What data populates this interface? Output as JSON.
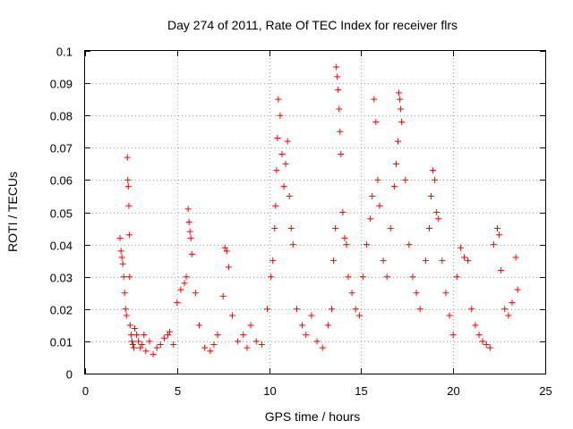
{
  "chart_data": {
    "type": "scatter",
    "title": "Day 274 of 2011, Rate Of TEC Index for receiver flrs",
    "xlabel": "GPS time / hours",
    "ylabel": "ROTI / TECUs",
    "xlim": [
      0,
      25
    ],
    "ylim": [
      0,
      0.1
    ],
    "xticks": [
      "0",
      "5",
      "10",
      "15",
      "20",
      "25"
    ],
    "yticks": [
      "0",
      "0.01",
      "0.02",
      "0.03",
      "0.04",
      "0.05",
      "0.06",
      "0.07",
      "0.08",
      "0.09",
      "0.1"
    ],
    "grid": true,
    "marker": "+",
    "color": "#ff0000",
    "series": [
      {
        "x": [
          1.9,
          1.95,
          2.0,
          2.05,
          2.1,
          2.15,
          2.2,
          2.25,
          2.3,
          2.32,
          2.35,
          2.38,
          2.4,
          2.42,
          2.45,
          2.5,
          2.55,
          2.6,
          2.65,
          2.7,
          2.8,
          2.9,
          3.0,
          3.1,
          3.2,
          3.3,
          3.5,
          3.7,
          3.9,
          4.1,
          4.3,
          4.5,
          4.6,
          4.8,
          5.0,
          5.2,
          5.4,
          5.5,
          5.6,
          5.65,
          5.7,
          5.75,
          5.8,
          6.0,
          6.2,
          6.5,
          6.8,
          7.0,
          7.2,
          7.5,
          7.6,
          7.7,
          7.8,
          8.0,
          8.3,
          8.6,
          8.8,
          9.0,
          9.3,
          9.6,
          9.9,
          10.1,
          10.2,
          10.3,
          10.35,
          10.4,
          10.45,
          10.5,
          10.6,
          10.7,
          10.8,
          10.9,
          11.0,
          11.1,
          11.2,
          11.3,
          11.5,
          11.8,
          12.0,
          12.3,
          12.6,
          12.9,
          13.2,
          13.4,
          13.5,
          13.6,
          13.65,
          13.7,
          13.75,
          13.8,
          13.85,
          13.9,
          14.0,
          14.1,
          14.2,
          14.3,
          14.5,
          14.7,
          14.9,
          15.1,
          15.3,
          15.5,
          15.6,
          15.7,
          15.8,
          15.9,
          16.0,
          16.2,
          16.4,
          16.6,
          16.8,
          16.9,
          17.0,
          17.05,
          17.1,
          17.15,
          17.2,
          17.4,
          17.6,
          17.8,
          18.0,
          18.2,
          18.5,
          18.7,
          18.8,
          18.9,
          19.0,
          19.1,
          19.2,
          19.4,
          19.6,
          19.8,
          20.0,
          20.2,
          20.4,
          20.6,
          20.8,
          21.0,
          21.2,
          21.4,
          21.6,
          21.8,
          22.0,
          22.2,
          22.4,
          22.5,
          22.6,
          22.8,
          23.0,
          23.2,
          23.4,
          23.5
        ],
        "y": [
          0.042,
          0.038,
          0.036,
          0.034,
          0.03,
          0.025,
          0.02,
          0.018,
          0.067,
          0.06,
          0.058,
          0.052,
          0.043,
          0.03,
          0.015,
          0.012,
          0.01,
          0.009,
          0.008,
          0.014,
          0.012,
          0.01,
          0.008,
          0.009,
          0.012,
          0.007,
          0.01,
          0.006,
          0.008,
          0.009,
          0.011,
          0.012,
          0.013,
          0.009,
          0.022,
          0.026,
          0.028,
          0.03,
          0.051,
          0.047,
          0.044,
          0.042,
          0.037,
          0.025,
          0.015,
          0.008,
          0.007,
          0.009,
          0.012,
          0.024,
          0.039,
          0.038,
          0.033,
          0.018,
          0.01,
          0.012,
          0.008,
          0.015,
          0.01,
          0.009,
          0.02,
          0.03,
          0.035,
          0.045,
          0.052,
          0.063,
          0.073,
          0.085,
          0.08,
          0.068,
          0.058,
          0.065,
          0.072,
          0.055,
          0.045,
          0.04,
          0.02,
          0.015,
          0.012,
          0.018,
          0.01,
          0.008,
          0.015,
          0.02,
          0.035,
          0.045,
          0.095,
          0.092,
          0.088,
          0.082,
          0.075,
          0.068,
          0.05,
          0.042,
          0.04,
          0.03,
          0.025,
          0.02,
          0.018,
          0.03,
          0.04,
          0.048,
          0.055,
          0.085,
          0.078,
          0.06,
          0.052,
          0.035,
          0.03,
          0.045,
          0.058,
          0.065,
          0.072,
          0.087,
          0.085,
          0.082,
          0.078,
          0.06,
          0.04,
          0.03,
          0.025,
          0.02,
          0.035,
          0.045,
          0.055,
          0.063,
          0.06,
          0.05,
          0.048,
          0.035,
          0.025,
          0.018,
          0.012,
          0.03,
          0.039,
          0.036,
          0.035,
          0.02,
          0.015,
          0.012,
          0.01,
          0.009,
          0.008,
          0.04,
          0.045,
          0.043,
          0.032,
          0.02,
          0.018,
          0.022,
          0.036,
          0.026
        ]
      }
    ]
  }
}
